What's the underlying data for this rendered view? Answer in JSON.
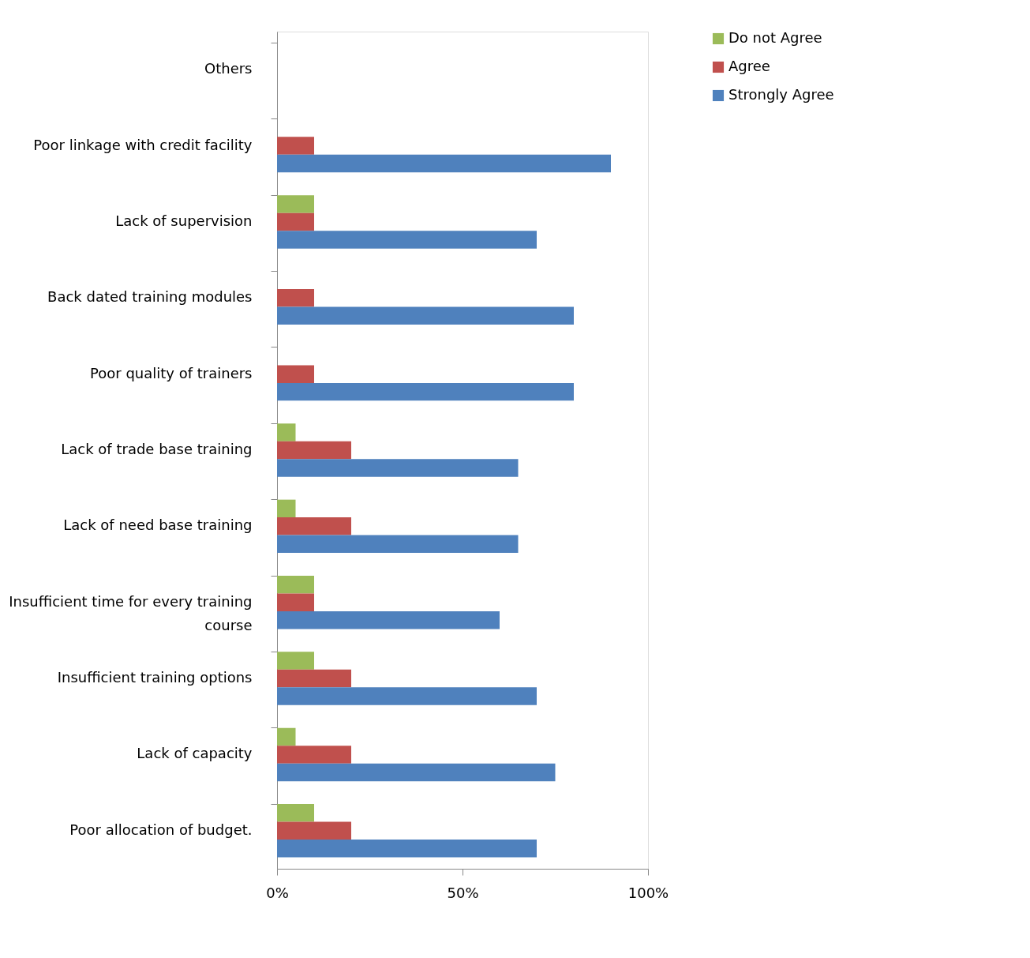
{
  "chart_data": {
    "type": "bar",
    "orientation": "horizontal",
    "categories": [
      "Others",
      "Poor linkage with credit facility",
      "Lack of supervision",
      "Back dated training modules",
      "Poor quality of trainers",
      "Lack of trade base training",
      "Lack of need base training",
      "Insufficient time for every training course",
      "Insufficient training options",
      "Lack of capacity",
      "Poor allocation of budget."
    ],
    "series": [
      {
        "name": "Do not Agree",
        "color": "#9bbb59",
        "values": [
          null,
          null,
          10,
          null,
          null,
          5,
          5,
          10,
          10,
          5,
          10
        ]
      },
      {
        "name": "Agree",
        "color": "#c0504d",
        "values": [
          null,
          10,
          10,
          10,
          10,
          20,
          20,
          10,
          20,
          20,
          20
        ]
      },
      {
        "name": "Strongly Agree",
        "color": "#4f81bd",
        "values": [
          null,
          90,
          70,
          80,
          80,
          65,
          65,
          60,
          70,
          75,
          70
        ]
      }
    ],
    "xlim": [
      0,
      100
    ],
    "xticks": [
      {
        "value": 0,
        "label": "0%"
      },
      {
        "value": 50,
        "label": "50%"
      },
      {
        "value": 100,
        "label": "100%"
      }
    ],
    "grid": false,
    "legend": "right"
  }
}
